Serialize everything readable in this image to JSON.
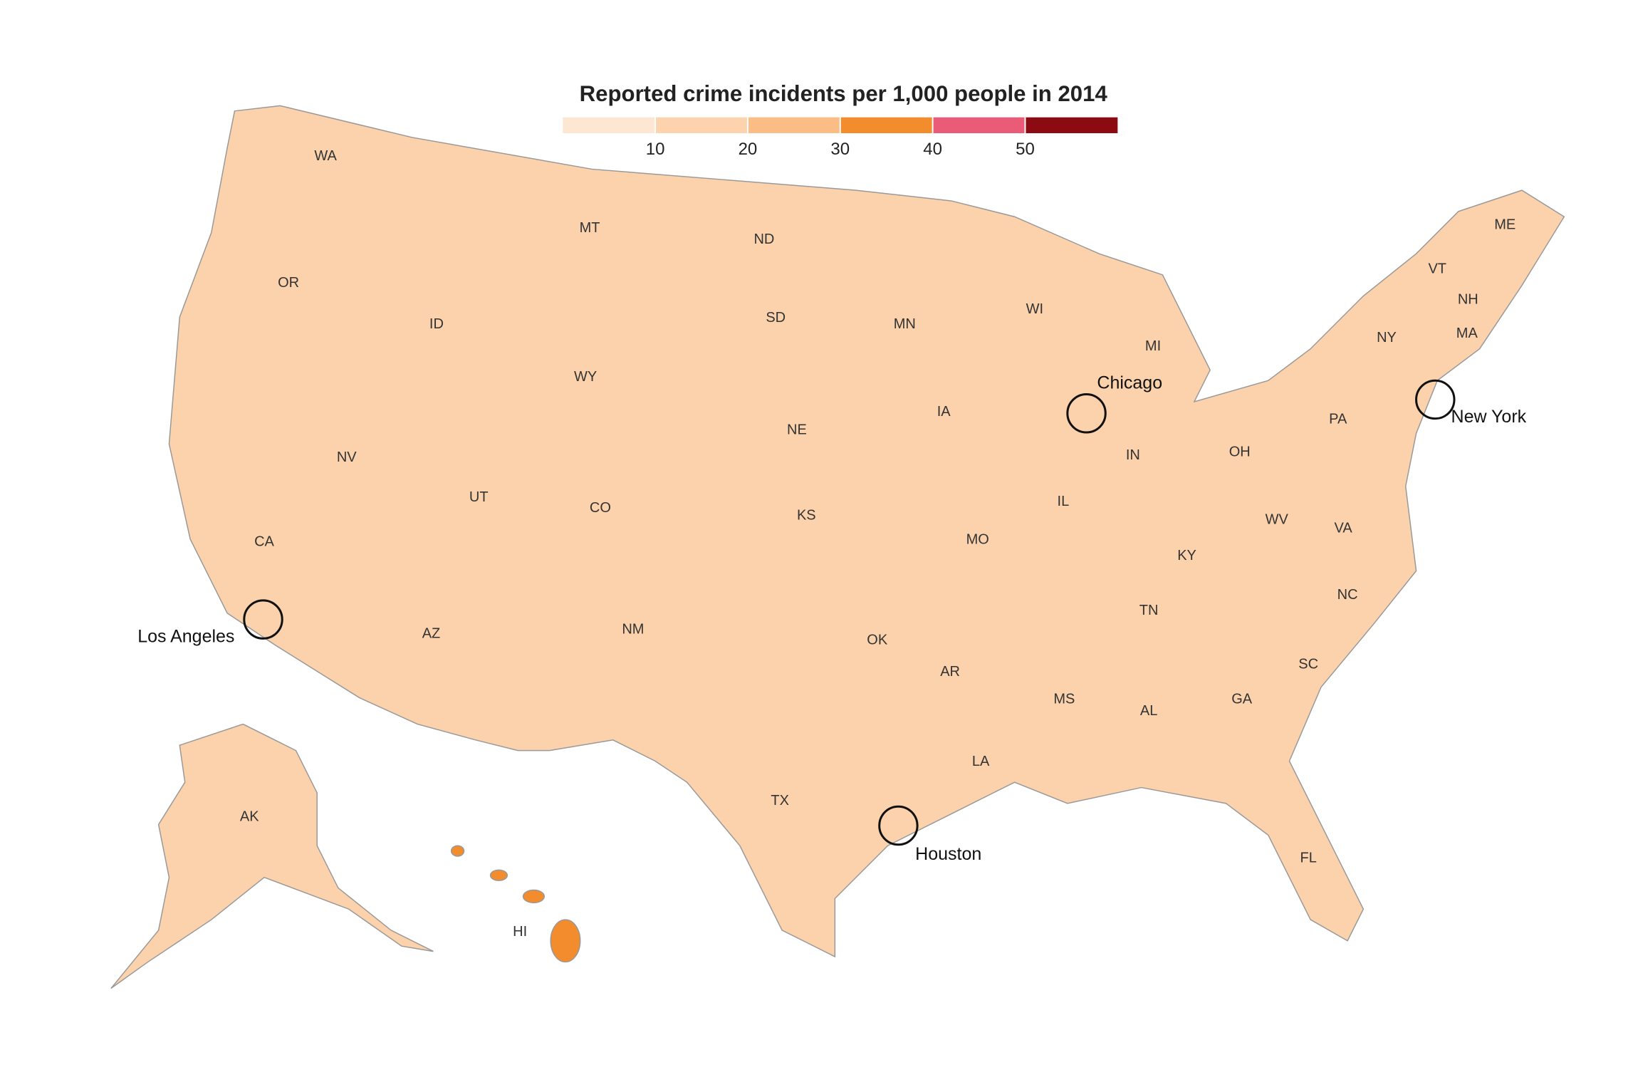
{
  "legend": {
    "title": "Reported crime incidents per 1,000 people in 2014",
    "ticks": [
      10,
      20,
      30,
      40,
      50
    ],
    "colors": [
      "#fde6d2",
      "#fcd3ad",
      "#fbbd85",
      "#f28c2c",
      "#ea5b78",
      "#8c0a12"
    ]
  },
  "states": [
    "WA",
    "OR",
    "CA",
    "NV",
    "ID",
    "MT",
    "WY",
    "UT",
    "CO",
    "AZ",
    "NM",
    "ND",
    "SD",
    "NE",
    "KS",
    "OK",
    "TX",
    "MN",
    "IA",
    "MO",
    "AR",
    "LA",
    "WI",
    "IL",
    "MI",
    "IN",
    "OH",
    "KY",
    "TN",
    "MS",
    "AL",
    "GA",
    "FL",
    "SC",
    "NC",
    "VA",
    "WV",
    "PA",
    "NY",
    "VT",
    "NH",
    "MA",
    "ME",
    "AK",
    "HI"
  ],
  "cities": [
    "Chicago",
    "New York",
    "Los Angeles",
    "Houston"
  ]
}
